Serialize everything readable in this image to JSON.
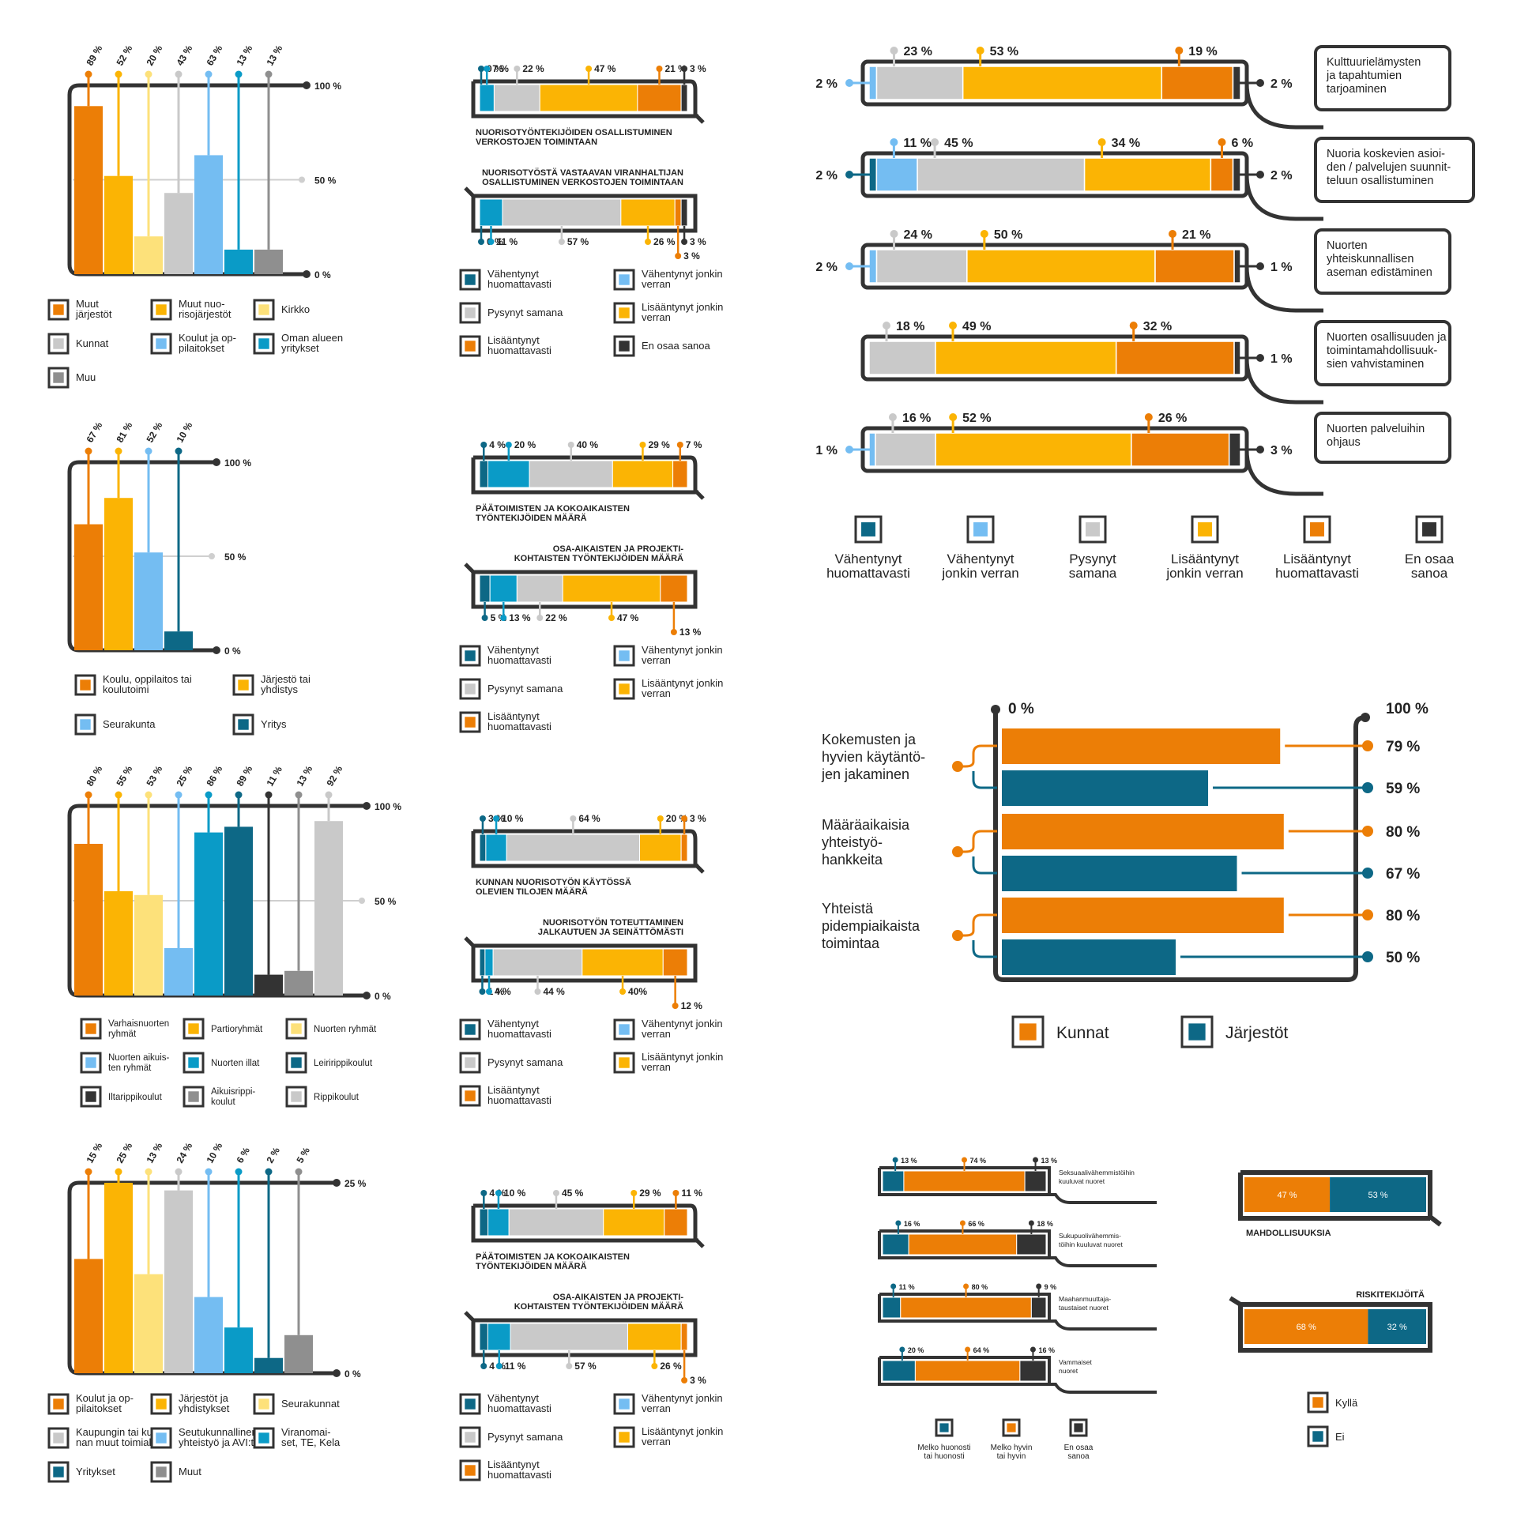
{
  "colors": {
    "dteal": "#0d6886",
    "lblue": "#74bdf2",
    "lgray": "#c9c9c9",
    "yellow": "#fbb404",
    "orange": "#ec7e06",
    "dark": "#333333",
    "teal": "#0a9bc7",
    "pale": "#fde17a",
    "mgray": "#8f8f8f",
    "frame": "#333333"
  },
  "chart_data": [
    {
      "id": "vbar1",
      "type": "bar",
      "ymax": 100,
      "ticks": [
        "100 %",
        "50 %",
        "0 %"
      ],
      "categories": [
        "Muut järjestöt",
        "Muut nuorisojärjestöt",
        "Kirkko",
        "Kunnat",
        "Koulut ja oppilaitokset",
        "Oman alueen yritykset",
        "Muu"
      ],
      "values": [
        89,
        52,
        20,
        43,
        63,
        13,
        13
      ],
      "labels": [
        "89 %",
        "52 %",
        "20 %",
        "43 %",
        "63 %",
        "13 %",
        "13 %"
      ],
      "colors": [
        "orange",
        "yellow",
        "pale",
        "lgray",
        "lblue",
        "teal",
        "mgray"
      ],
      "legend": [
        "Muut|järjestöt",
        "Muut nuo-|risojärjestöt",
        "Kirkko",
        "Kunnat",
        "Koulut ja op-|pilaitokset",
        "Oman alueen|yritykset",
        "Muu"
      ]
    },
    {
      "id": "vbar2",
      "type": "bar",
      "ymax": 100,
      "ticks": [
        "100 %",
        "50 %",
        "0 %"
      ],
      "categories": [
        "Koulu, oppilaitos tai koulutoimi",
        "Järjestö tai yhdistys",
        "Seurakunta",
        "Yritys"
      ],
      "values": [
        67,
        81,
        52,
        10
      ],
      "labels": [
        "67 %",
        "81 %",
        "52 %",
        "10 %"
      ],
      "colors": [
        "orange",
        "yellow",
        "lblue",
        "dteal"
      ],
      "legend": [
        "Koulu, oppilaitos tai|koulutoimi",
        "Järjestö tai|yhdistys",
        "Seurakunta",
        "Yritys"
      ]
    },
    {
      "id": "vbar3",
      "type": "bar",
      "ymax": 100,
      "ticks": [
        "100 %",
        "50 %",
        "0 %"
      ],
      "categories": [
        "Varhaisnuorten ryhmät",
        "Partioryhmät",
        "Nuorten ryhmät",
        "Nuorten aikuisten ryhmät",
        "Nuorten illat",
        "Leiririppikoulut",
        "Iltarippikoulut",
        "Aikuisrippikoulut",
        "Rippikoulut"
      ],
      "values": [
        80,
        55,
        53,
        25,
        86,
        89,
        11,
        13,
        92
      ],
      "labels": [
        "80 %",
        "55 %",
        "53 %",
        "25 %",
        "86 %",
        "89 %",
        "11 %",
        "13 %",
        "92 %"
      ],
      "colors": [
        "orange",
        "yellow",
        "pale",
        "lblue",
        "teal",
        "dteal",
        "dark",
        "mgray",
        "lgray"
      ],
      "legend": [
        "Varhaisnuorten|ryhmät",
        "Partioryhmät",
        "Nuorten ryhmät",
        "Nuorten aikuis-|ten ryhmät",
        "Nuorten illat",
        "Leiririppikoulut",
        "Iltarippikoulut",
        "Aikuisrippi-|koulut",
        "Rippikoulut"
      ]
    },
    {
      "id": "vbar4",
      "type": "bar",
      "ymax": 25,
      "ticks": [
        "25 %",
        "0 %"
      ],
      "categories": [
        "Koulut ja oppilaitokset",
        "Järjestöt ja yhdistykset",
        "Seurakunnat",
        "Kaupungin tai kunnan muut toimialat",
        "Seutukunnallinen yhteistyö ja AVI:t",
        "Viranomaiset, TE, Kela",
        "Yritykset",
        "Muut"
      ],
      "values": [
        15,
        25,
        13,
        24,
        10,
        6,
        2,
        5
      ],
      "labels": [
        "15 %",
        "25 %",
        "13 %",
        "24 %",
        "10 %",
        "6 %",
        "2 %",
        "5 %"
      ],
      "colors": [
        "orange",
        "yellow",
        "pale",
        "lgray",
        "lblue",
        "teal",
        "dteal",
        "mgray"
      ],
      "legend": [
        "Koulut ja op-|pilaitokset",
        "Järjestöt ja|yhdistykset",
        "Seurakunnat",
        "Kaupungin tai kun-|nan muut toimialat",
        "Seutukunnallinen|yhteistyö ja AVI:t",
        "Viranomai-|set, TE, Kela",
        "Yritykset",
        "Muut"
      ]
    },
    {
      "id": "pair1",
      "type": "bar",
      "bars": [
        {
          "title": "NUORISOTYÖNTEKIJÖIDEN OSALLISTUMINEN|VERKOSTOJEN TOIMINTAAN",
          "values": [
            0,
            7,
            22,
            47,
            21,
            3
          ],
          "labels": [
            "0 %",
            "7 %",
            "22 %",
            "47 %",
            "21 %",
            "3 %"
          ],
          "colors": [
            "dteal",
            "teal",
            "lgray",
            "yellow",
            "orange",
            "dark"
          ]
        },
        {
          "title": "NUORISOTYÖSTÄ VASTAAVAN VIRANHALTIJAN|OSALLISTUMINEN VERKOSTOJEN TOIMINTAAN",
          "values": [
            0,
            11,
            57,
            26,
            3,
            3
          ],
          "labels": [
            "0 %",
            "11 %",
            "57 %",
            "26 %",
            "3 %",
            "3 %"
          ],
          "colors": [
            "dteal",
            "teal",
            "lgray",
            "yellow",
            "orange",
            "dark"
          ]
        }
      ],
      "legend": [
        "Vähentynyt|huomattavasti",
        "Vähentynyt jonkin|verran",
        "Pysynyt samana",
        "Lisääntynyt jonkin|verran",
        "Lisääntynyt|huomattavasti",
        "En osaa sanoa"
      ],
      "legendColors": [
        "dteal",
        "lblue",
        "lgray",
        "yellow",
        "orange",
        "dark"
      ]
    },
    {
      "id": "pair2",
      "type": "bar",
      "bars": [
        {
          "title": "PÄÄTOIMISTEN JA KOKOAIKAISTEN|TYÖNTEKIJÖIDEN MÄÄRÄ",
          "values": [
            4,
            20,
            40,
            29,
            7
          ],
          "labels": [
            "4 %",
            "20 %",
            "40 %",
            "29 %",
            "7 %"
          ],
          "colors": [
            "dteal",
            "teal",
            "lgray",
            "yellow",
            "orange"
          ]
        },
        {
          "title": "OSA-AIKAISTEN JA PROJEKTI-|KOHTAISTEN TYÖNTEKIJÖIDEN MÄÄRÄ",
          "values": [
            5,
            13,
            22,
            47,
            13
          ],
          "labels": [
            "5 %",
            "13 %",
            "22 %",
            "47 %",
            "13 %"
          ],
          "colors": [
            "dteal",
            "teal",
            "lgray",
            "yellow",
            "orange"
          ]
        }
      ],
      "legend": [
        "Vähentynyt|huomattavasti",
        "Vähentynyt jonkin|verran",
        "Pysynyt samana",
        "Lisääntynyt jonkin|verran",
        "Lisääntynyt|huomattavasti"
      ],
      "legendColors": [
        "dteal",
        "lblue",
        "lgray",
        "yellow",
        "orange"
      ]
    },
    {
      "id": "pair3",
      "type": "bar",
      "bars": [
        {
          "title": "KUNNAN NUORISOTYÖN KÄYTÖSSÄ|OLEVIEN TILOJEN MÄÄRÄ",
          "values": [
            3,
            10,
            64,
            20,
            3
          ],
          "labels": [
            "3 %",
            "10 %",
            "64 %",
            "20 %",
            "3 %"
          ],
          "colors": [
            "dteal",
            "teal",
            "lgray",
            "yellow",
            "orange"
          ]
        },
        {
          "title": "NUORISOTYÖN TOTEUTTAMINEN|JALKAUTUEN JA SEINÄTTÖMÄSTI",
          "values": [
            1,
            4,
            44,
            40,
            12
          ],
          "labels": [
            "1 %",
            "4 %",
            "44 %",
            "40%",
            "12 %"
          ],
          "colors": [
            "dteal",
            "teal",
            "lgray",
            "yellow",
            "orange"
          ]
        }
      ],
      "legend": [
        "Vähentynyt|huomattavasti",
        "Vähentynyt jonkin|verran",
        "Pysynyt samana",
        "Lisääntynyt jonkin|verran",
        "Lisääntynyt|huomattavasti"
      ],
      "legendColors": [
        "dteal",
        "lblue",
        "lgray",
        "yellow",
        "orange"
      ]
    },
    {
      "id": "pair4",
      "type": "bar",
      "bars": [
        {
          "title": "PÄÄTOIMISTEN JA KOKOAIKAISTEN|TYÖNTEKIJÖIDEN MÄÄRÄ",
          "values": [
            4,
            10,
            45,
            29,
            11
          ],
          "labels": [
            "4 %",
            "10 %",
            "45 %",
            "29 %",
            "11 %"
          ],
          "colors": [
            "dteal",
            "teal",
            "lgray",
            "yellow",
            "orange"
          ]
        },
        {
          "title": "OSA-AIKAISTEN JA PROJEKTI-|KOHTAISTEN TYÖNTEKIJÖIDEN MÄÄRÄ",
          "values": [
            4,
            11,
            57,
            26,
            3
          ],
          "labels": [
            "4 %",
            "11 %",
            "57 %",
            "26 %",
            "3 %"
          ],
          "colors": [
            "dteal",
            "teal",
            "lgray",
            "yellow",
            "orange"
          ]
        }
      ],
      "legend": [
        "Vähentynyt|huomattavasti",
        "Vähentynyt jonkin|verran",
        "Pysynyt samana",
        "Lisääntynyt jonkin|verran",
        "Lisääntynyt|huomattavasti"
      ],
      "legendColors": [
        "dteal",
        "lblue",
        "lgray",
        "yellow",
        "orange"
      ]
    },
    {
      "id": "stackBig",
      "type": "bar",
      "rows": [
        {
          "label": "Kulttuurielämysten|ja tapahtumien|tarjoaminen",
          "values": [
            2,
            23,
            53,
            19,
            2
          ],
          "colors": [
            "lblue",
            "lgray",
            "yellow",
            "orange",
            "dark"
          ]
        },
        {
          "label": "Nuoria koskevien asioi-|den / palvelujen suunnit-|teluun osallistuminen",
          "values": [
            2,
            11,
            45,
            34,
            6,
            2
          ],
          "colors": [
            "dteal",
            "lblue",
            "lgray",
            "yellow",
            "orange",
            "dark"
          ]
        },
        {
          "label": "Nuorten|yhteiskunnallisen|aseman edistäminen",
          "values": [
            2,
            24,
            50,
            21,
            1
          ],
          "colors": [
            "lblue",
            "lgray",
            "yellow",
            "orange",
            "dark"
          ]
        },
        {
          "label": "Nuorten osallisuuden ja|toimintamahdollisuuk-|sien vahvistaminen",
          "values": [
            18,
            49,
            32,
            1
          ],
          "colors": [
            "lgray",
            "yellow",
            "orange",
            "dark"
          ]
        },
        {
          "label": "Nuorten palveluihin|ohjaus",
          "values": [
            1,
            16,
            52,
            26,
            3
          ],
          "colors": [
            "lblue",
            "lgray",
            "yellow",
            "orange",
            "dark"
          ]
        }
      ],
      "legend": [
        "Vähentynyt|huomattavasti",
        "Vähentynyt|jonkin verran",
        "Pysynyt|samana",
        "Lisääntynyt|jonkin verran",
        "Lisääntynyt|huomattavasti",
        "En osaa|sanoa"
      ],
      "legendColors": [
        "dteal",
        "lblue",
        "lgray",
        "yellow",
        "orange",
        "dark"
      ]
    },
    {
      "id": "hbar",
      "type": "bar",
      "xlim": [
        0,
        100
      ],
      "axisLeft": "0 %",
      "axisRight": "100 %",
      "categories": [
        "Kokemusten ja|hyvien käytäntö-|jen jakaminen",
        "Määräaikaisia|yhteistyö-|hankkeita",
        "Yhteistä|pidempiaikaista|toimintaa"
      ],
      "series": [
        {
          "name": "Kunnat",
          "values": [
            79,
            80,
            80
          ],
          "labels": [
            "79 %",
            "80 %",
            "80 %"
          ],
          "color": "orange"
        },
        {
          "name": "Järjestöt",
          "values": [
            59,
            67,
            50
          ],
          "labels": [
            "59 %",
            "67 %",
            "50 %"
          ],
          "color": "dteal"
        }
      ]
    },
    {
      "id": "small",
      "type": "bar",
      "rows": [
        {
          "label": "Seksuaalivähemmistöihin|kuuluvat nuoret",
          "values": [
            13,
            74,
            13
          ]
        },
        {
          "label": "Sukupuolivähemmis-|töihin kuuluvat nuoret",
          "values": [
            16,
            66,
            18
          ]
        },
        {
          "label": "Maahanmuuttaja-|taustaiset nuoret",
          "values": [
            11,
            80,
            9
          ]
        },
        {
          "label": "Vammaiset|nuoret",
          "values": [
            20,
            64,
            16
          ]
        }
      ],
      "colors": [
        "dteal",
        "orange",
        "dark"
      ],
      "legend": [
        "Melko huonosti|tai huonosti",
        "Melko hyvin|tai hyvin",
        "En osaa|sanoa"
      ]
    },
    {
      "id": "yn",
      "type": "bar",
      "bars": [
        {
          "title": "MAHDOLLISUUKSIA",
          "values": [
            47,
            53
          ]
        },
        {
          "title": "RISKITEKIJÖITÄ",
          "values": [
            68,
            32
          ]
        }
      ],
      "colors": [
        "orange",
        "dteal"
      ],
      "legend": [
        "Kyllä",
        "Ei"
      ]
    }
  ]
}
